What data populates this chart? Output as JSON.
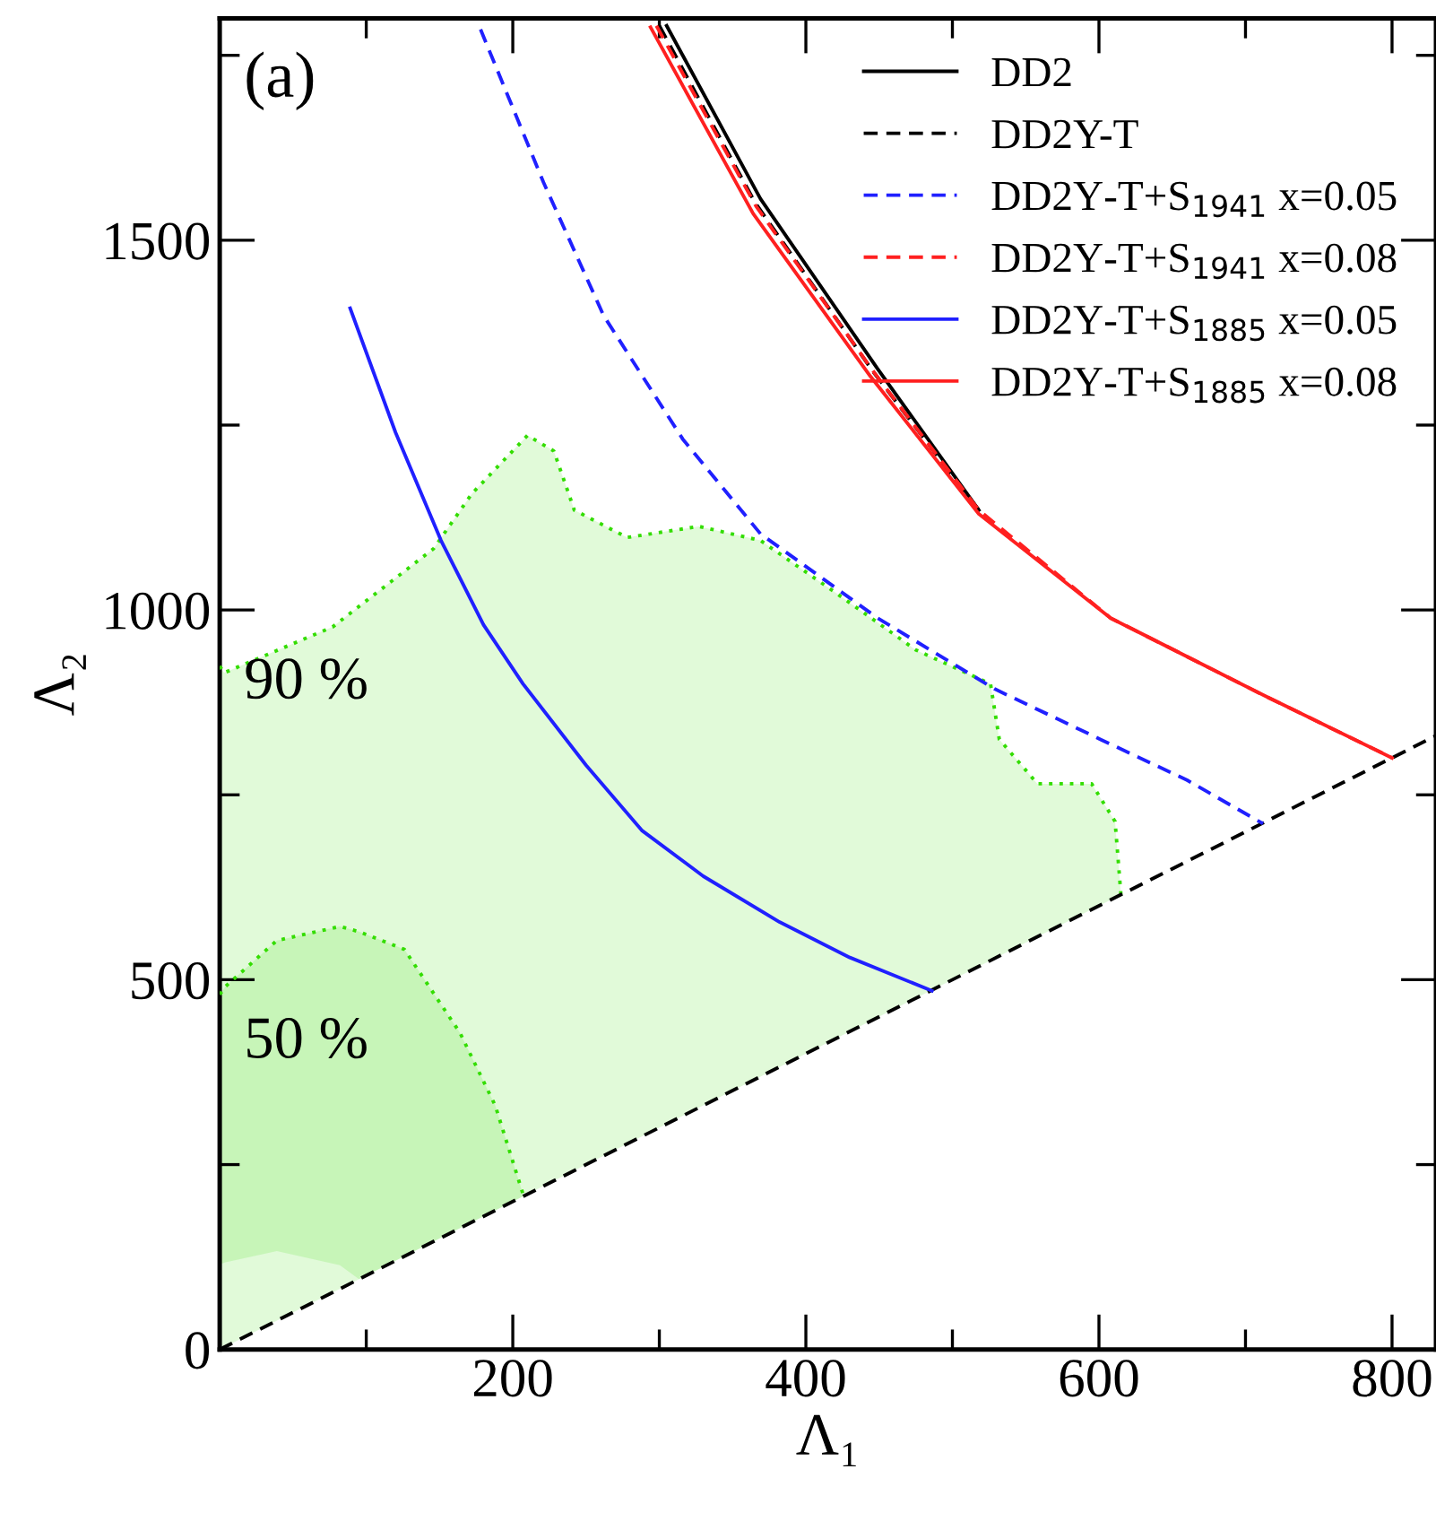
{
  "chart_data": {
    "type": "line",
    "annotations": [
      "(a)",
      "90 %",
      "50 %"
    ],
    "xlabel": "Λ₁",
    "ylabel": "Λ₂",
    "xlim": [
      0,
      830
    ],
    "ylim": [
      0,
      1800
    ],
    "xticks": [
      {
        "value": 100,
        "label": null
      },
      200,
      {
        "value": 300,
        "label": null
      },
      400,
      {
        "value": 500,
        "label": null
      },
      600,
      {
        "value": 700,
        "label": null
      },
      800
    ],
    "yticks": [
      0,
      {
        "value": 250,
        "label": null
      },
      500,
      {
        "value": 750,
        "label": null
      },
      1000,
      {
        "value": 1250,
        "label": null
      },
      1500,
      {
        "value": 1750,
        "label": null
      }
    ],
    "grid": false,
    "legend": "top right",
    "marker": "none",
    "series": [
      {
        "color": "#33dd00",
        "line_style": "dotted",
        "x": [
          0,
          3,
          77,
          146,
          172,
          210,
          228,
          242,
          278,
          327,
          369,
          422,
          475,
          526,
          532,
          558,
          595,
          611,
          614,
          615
        ],
        "values": [
          924,
          915,
          977,
          1083,
          1157,
          1236,
          1215,
          1135,
          1098,
          1113,
          1094,
          1021,
          946,
          900,
          825,
          765,
          765,
          714,
          640,
          615
        ],
        "upper": [
          924,
          915,
          977,
          1083,
          1157,
          1236,
          1215,
          1135,
          1098,
          1113,
          1094,
          1021,
          946,
          900,
          825,
          765,
          765,
          714,
          640,
          615
        ],
        "lower": [
          0,
          3,
          77,
          146,
          172,
          210,
          228,
          242,
          278,
          327,
          369,
          422,
          475,
          526,
          532,
          558,
          595,
          611,
          614,
          615
        ]
      },
      {
        "color": "#33dd00",
        "line_style": "dotted",
        "x": [
          0,
          4,
          39,
          82,
          95,
          126,
          164,
          188,
          207
        ],
        "values": [
          480,
          491,
          553,
          572,
          565,
          541,
          428,
          330,
          210
        ],
        "upper": [
          480,
          491,
          553,
          572,
          565,
          541,
          428,
          330,
          210
        ],
        "lower": [
          115,
          118,
          133,
          114,
          95,
          126,
          164,
          188,
          207
        ]
      },
      {
        "color": "#000000",
        "line_style": "dashed",
        "x": [
          0,
          830
        ],
        "values": [
          0,
          830
        ]
      },
      {
        "name": "DD2",
        "color": "#000000",
        "line_style": "solid",
        "x": [
          305,
          369,
          449,
          518
        ],
        "values": [
          1790,
          1556,
          1326,
          1135
        ]
      },
      {
        "name": "DD2Y-T",
        "color": "#000000",
        "line_style": "dashed",
        "x": [
          300,
          365,
          446,
          518
        ],
        "values": [
          1790,
          1552,
          1322,
          1135
        ]
      },
      {
        "name": "DD2Y-T+S$_{1941}$ x=0.05",
        "color": "#2020ff",
        "line_style": "dashed",
        "x": [
          178,
          221,
          262,
          316,
          369,
          449,
          529,
          601,
          660,
          712
        ],
        "values": [
          1785,
          1578,
          1398,
          1231,
          1103,
          989,
          893,
          825,
          770,
          711
        ]
      },
      {
        "name": "DD2Y-T+S$_{1941}$ x=0.08",
        "color": "#ff2020",
        "line_style": "dashed",
        "x": [
          298,
          366,
          447,
          518,
          608,
          714,
          800
        ],
        "values": [
          1790,
          1546,
          1320,
          1135,
          989,
          883,
          800
        ]
      },
      {
        "name": "DD2Y-T+S$_{1885}$ x=0.05",
        "color": "#2020ff",
        "line_style": "solid",
        "x": [
          89,
          120,
          151,
          180,
          207,
          250,
          288,
          330,
          382,
          430,
          486
        ],
        "values": [
          1408,
          1240,
          1094,
          980,
          900,
          790,
          702,
          640,
          578,
          530,
          485
        ]
      },
      {
        "name": "DD2Y-T+S$_{1885}$ x=0.08",
        "color": "#ff2020",
        "line_style": "solid",
        "x": [
          294,
          364,
          444,
          518,
          608,
          714,
          800
        ],
        "values": [
          1788,
          1536,
          1316,
          1130,
          989,
          883,
          800
        ]
      }
    ]
  }
}
